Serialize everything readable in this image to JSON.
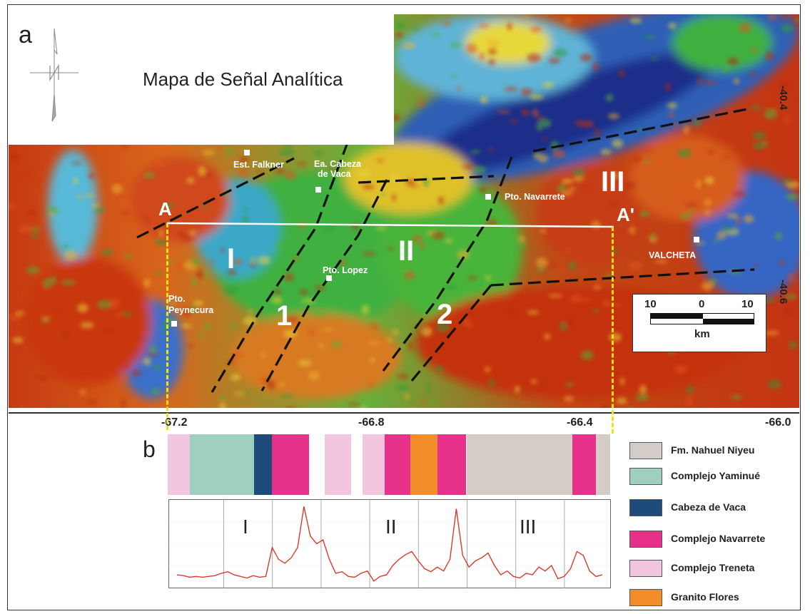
{
  "panel_a": {
    "letter": "a",
    "title": "Mapa de Señal Analítica",
    "places": [
      {
        "name": "Est. Falkner"
      },
      {
        "name": "Ea. Cabeza"
      },
      {
        "name": "de Vaca"
      },
      {
        "name": "Pto. Navarrete"
      },
      {
        "name": "Pto. Lopez"
      },
      {
        "name": "Pto."
      },
      {
        "name": "Peynecura"
      },
      {
        "name": "VALCHETA"
      }
    ],
    "profile_ends": [
      "A",
      "A'"
    ],
    "domains": [
      "I",
      "II",
      "III"
    ],
    "fault_labels": [
      "1",
      "2"
    ],
    "scale_bar": {
      "ticks": [
        "10",
        "0",
        "10"
      ],
      "unit": "km"
    },
    "longitudes": [
      "-67.2",
      "-66.8",
      "-66.4",
      "-66.0"
    ],
    "latitudes": [
      "-40.4",
      "-40.6"
    ]
  },
  "panel_b": {
    "letter": "b",
    "profile_domains": [
      "I",
      "II",
      "III"
    ],
    "units": [
      {
        "name": "Fm. Nahuel Niyeu",
        "color": "#d4ccc6"
      },
      {
        "name": "Complejo Yaminué",
        "color": "#9ecfc0"
      },
      {
        "name": "Cabeza de Vaca",
        "color": "#1f4b7a"
      },
      {
        "name": "Complejo Navarrete",
        "color": "#e8318a"
      },
      {
        "name": "Complejo Treneta",
        "color": "#f3c6e0"
      },
      {
        "name": "Granito Flores",
        "color": "#f28d2a"
      }
    ],
    "strip": [
      {
        "unit": 4,
        "from": 0.0,
        "to": 0.05
      },
      {
        "unit": 1,
        "from": 0.05,
        "to": 0.195
      },
      {
        "unit": 2,
        "from": 0.195,
        "to": 0.235
      },
      {
        "unit": 3,
        "from": 0.235,
        "to": 0.32
      },
      {
        "unit": -1,
        "from": 0.32,
        "to": 0.355
      },
      {
        "unit": 4,
        "from": 0.355,
        "to": 0.415
      },
      {
        "unit": -1,
        "from": 0.415,
        "to": 0.44
      },
      {
        "unit": 4,
        "from": 0.44,
        "to": 0.49
      },
      {
        "unit": 3,
        "from": 0.49,
        "to": 0.548
      },
      {
        "unit": 5,
        "from": 0.548,
        "to": 0.61
      },
      {
        "unit": 3,
        "from": 0.61,
        "to": 0.675
      },
      {
        "unit": 0,
        "from": 0.675,
        "to": 0.915
      },
      {
        "unit": 3,
        "from": 0.915,
        "to": 0.968
      },
      {
        "unit": 0,
        "from": 0.968,
        "to": 1.0
      }
    ],
    "signal_profile": [
      0.1,
      0.09,
      0.07,
      0.08,
      0.07,
      0.08,
      0.09,
      0.12,
      0.14,
      0.1,
      0.08,
      0.06,
      0.09,
      0.07,
      0.08,
      0.45,
      0.3,
      0.25,
      0.32,
      0.45,
      0.98,
      0.6,
      0.5,
      0.55,
      0.3,
      0.12,
      0.14,
      0.08,
      0.07,
      0.12,
      0.15,
      0.02,
      0.08,
      0.1,
      0.22,
      0.3,
      0.36,
      0.4,
      0.28,
      0.18,
      0.14,
      0.2,
      0.15,
      0.3,
      0.95,
      0.35,
      0.2,
      0.28,
      0.32,
      0.38,
      0.22,
      0.1,
      0.15,
      0.08,
      0.06,
      0.12,
      0.1,
      0.2,
      0.15,
      0.22,
      0.05,
      0.08,
      0.18,
      0.4,
      0.35,
      0.15,
      0.08,
      0.1
    ]
  },
  "colors": {
    "profile_line": "#ffffff",
    "profile_guides": "#f5e010",
    "faults": "#111111",
    "signal_curve": "#d93a2a"
  }
}
